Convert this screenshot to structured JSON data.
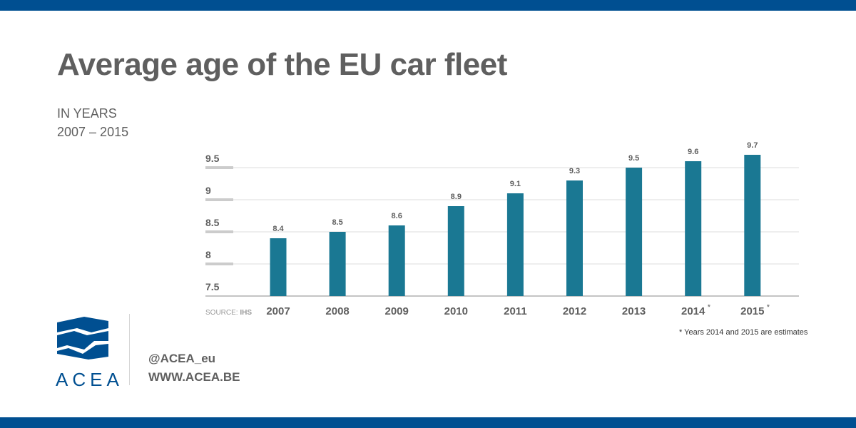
{
  "header": {
    "title": "Average age of the EU car fleet",
    "subtitle_line1": "IN YEARS",
    "subtitle_line2": "2007 – 2015"
  },
  "chart_data": {
    "type": "bar",
    "categories": [
      "2007",
      "2008",
      "2009",
      "2010",
      "2011",
      "2012",
      "2013",
      "2014",
      "2015"
    ],
    "category_suffix": [
      "",
      "",
      "",
      "",
      "",
      "",
      "",
      "*",
      "*"
    ],
    "values": [
      8.4,
      8.5,
      8.6,
      8.9,
      9.1,
      9.3,
      9.5,
      9.6,
      9.7
    ],
    "data_labels": [
      "8.4",
      "8.5",
      "8.6",
      "8.9",
      "9.1",
      "9.3",
      "9.5",
      "9.6",
      "9.7"
    ],
    "y_ticks": [
      "7.5",
      "8",
      "8.5",
      "9",
      "9.5"
    ],
    "y_tick_values": [
      7.5,
      8,
      8.5,
      9,
      9.5
    ],
    "ylim": [
      7.5,
      9.7
    ],
    "grid": true,
    "bar_color": "#1a7893",
    "source_prefix": "SOURCE: ",
    "source_name": "IHS",
    "footnote": "*  Years 2014 and 2015 are estimates"
  },
  "brand": {
    "name": "ACEA",
    "twitter": "@ACEA_eu",
    "website": "WWW.ACEA.BE",
    "primary_color": "#004f91"
  }
}
